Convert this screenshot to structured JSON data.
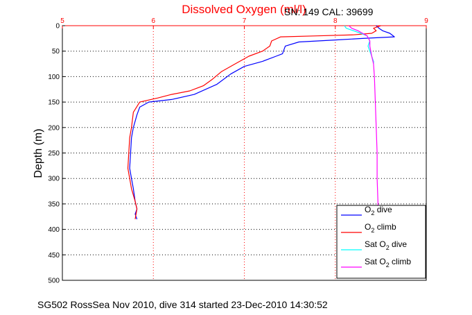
{
  "chart_data": {
    "type": "line",
    "title": "Dissolved Oxygen (ml/l)",
    "title_color": "#ff0000",
    "subtitle": "SN: 149  CAL: 39699",
    "ylabel": "Depth (m)",
    "xlabel": "",
    "x_axis_position": "top",
    "x_axis_color": "#ff0000",
    "xlim": [
      5,
      9
    ],
    "ylim": [
      0,
      500
    ],
    "y_reversed": true,
    "x_ticks": [
      "5",
      "6",
      "7",
      "8",
      "9"
    ],
    "y_ticks": [
      "0",
      "50",
      "100",
      "150",
      "200",
      "250",
      "300",
      "350",
      "400",
      "450",
      "500"
    ],
    "grid": true,
    "grid_style": "dotted",
    "legend_placement": "bottom-right",
    "series": [
      {
        "name": "O2 dive",
        "color": "#0000ff",
        "points": [
          [
            8.45,
            0
          ],
          [
            8.48,
            5
          ],
          [
            8.52,
            10
          ],
          [
            8.6,
            15
          ],
          [
            8.65,
            22
          ],
          [
            8.3,
            25
          ],
          [
            8.0,
            28
          ],
          [
            7.6,
            32
          ],
          [
            7.45,
            40
          ],
          [
            7.42,
            55
          ],
          [
            7.35,
            60
          ],
          [
            7.2,
            70
          ],
          [
            7.0,
            80
          ],
          [
            6.85,
            95
          ],
          [
            6.7,
            115
          ],
          [
            6.45,
            135
          ],
          [
            6.2,
            145
          ],
          [
            5.95,
            150
          ],
          [
            5.85,
            160
          ],
          [
            5.82,
            175
          ],
          [
            5.78,
            200
          ],
          [
            5.76,
            220
          ],
          [
            5.75,
            250
          ],
          [
            5.74,
            280
          ],
          [
            5.76,
            300
          ],
          [
            5.78,
            320
          ],
          [
            5.8,
            345
          ],
          [
            5.82,
            360
          ],
          [
            5.8,
            370
          ],
          [
            5.82,
            380
          ]
        ]
      },
      {
        "name": "O2 climb",
        "color": "#ff0000",
        "points": [
          [
            8.5,
            0
          ],
          [
            8.42,
            5
          ],
          [
            8.45,
            10
          ],
          [
            8.4,
            15
          ],
          [
            8.2,
            18
          ],
          [
            7.8,
            20
          ],
          [
            7.4,
            22
          ],
          [
            7.3,
            30
          ],
          [
            7.28,
            40
          ],
          [
            7.2,
            50
          ],
          [
            7.05,
            60
          ],
          [
            6.9,
            75
          ],
          [
            6.75,
            90
          ],
          [
            6.65,
            105
          ],
          [
            6.55,
            118
          ],
          [
            6.4,
            128
          ],
          [
            6.2,
            135
          ],
          [
            6.05,
            142
          ],
          [
            5.85,
            150
          ],
          [
            5.78,
            170
          ],
          [
            5.76,
            200
          ],
          [
            5.74,
            220
          ],
          [
            5.73,
            250
          ],
          [
            5.72,
            280
          ],
          [
            5.74,
            300
          ],
          [
            5.76,
            320
          ],
          [
            5.8,
            345
          ],
          [
            5.82,
            360
          ],
          [
            5.8,
            380
          ]
        ]
      },
      {
        "name": "Sat O2 dive",
        "color": "#00ffff",
        "points": [
          [
            8.1,
            0
          ],
          [
            8.12,
            5
          ],
          [
            8.2,
            10
          ],
          [
            8.28,
            15
          ],
          [
            8.35,
            20
          ],
          [
            8.38,
            30
          ],
          [
            8.36,
            40
          ],
          [
            8.38,
            50
          ],
          [
            8.4,
            60
          ],
          [
            8.42,
            70
          ],
          [
            8.42,
            75
          ]
        ]
      },
      {
        "name": "Sat O2 climb",
        "color": "#ff00ff",
        "points": [
          [
            8.15,
            0
          ],
          [
            8.18,
            5
          ],
          [
            8.25,
            10
          ],
          [
            8.3,
            15
          ],
          [
            8.35,
            20
          ],
          [
            8.38,
            30
          ],
          [
            8.38,
            40
          ],
          [
            8.4,
            60
          ],
          [
            8.42,
            75
          ],
          [
            8.43,
            100
          ],
          [
            8.44,
            150
          ],
          [
            8.45,
            200
          ],
          [
            8.46,
            250
          ],
          [
            8.46,
            300
          ],
          [
            8.47,
            350
          ],
          [
            8.47,
            380
          ]
        ]
      }
    ]
  },
  "legend": {
    "items": [
      {
        "prefix": "O",
        "sub": "2",
        "suffix": " dive",
        "color": "#0000ff"
      },
      {
        "prefix": "O",
        "sub": "2",
        "suffix": " climb",
        "color": "#ff0000"
      },
      {
        "prefix": "Sat O",
        "sub": "2",
        "suffix": " dive",
        "color": "#00ffff"
      },
      {
        "prefix": "Sat O",
        "sub": "2",
        "suffix": " climb",
        "color": "#ff00ff"
      }
    ]
  },
  "footer": {
    "text": "SG502 RossSea Nov 2010, dive 314 started 23-Dec-2010 14:30:52"
  }
}
